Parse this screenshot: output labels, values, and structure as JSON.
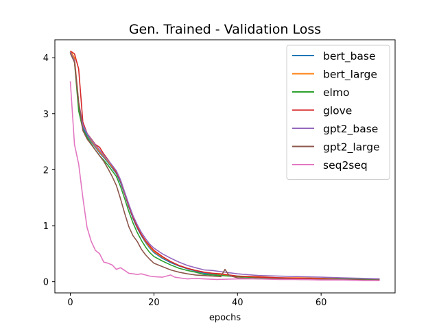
{
  "chart_data": {
    "type": "line",
    "title": "Gen. Trained - Validation Loss",
    "xlabel": "epochs",
    "ylabel": "",
    "xlim": [
      -3.7,
      77.7
    ],
    "ylim": [
      -0.2,
      4.32
    ],
    "xticks": [
      0,
      20,
      40,
      60
    ],
    "yticks": [
      0,
      1,
      2,
      3,
      4
    ],
    "grid": false,
    "legend_position": "top-right",
    "series": [
      {
        "name": "bert_base",
        "color": "#1f77b4",
        "points": [
          [
            0,
            4.1
          ],
          [
            1,
            3.95
          ],
          [
            2,
            3.15
          ],
          [
            3,
            2.75
          ],
          [
            4,
            2.62
          ],
          [
            5,
            2.5
          ],
          [
            6,
            2.4
          ],
          [
            7,
            2.3
          ],
          [
            8,
            2.22
          ],
          [
            9,
            2.13
          ],
          [
            10,
            2.03
          ],
          [
            11,
            1.93
          ],
          [
            12,
            1.77
          ],
          [
            13,
            1.56
          ],
          [
            14,
            1.33
          ],
          [
            15,
            1.13
          ],
          [
            16,
            0.96
          ],
          [
            17,
            0.82
          ],
          [
            18,
            0.7
          ],
          [
            19,
            0.6
          ],
          [
            20,
            0.52
          ],
          [
            22,
            0.42
          ],
          [
            24,
            0.34
          ],
          [
            26,
            0.28
          ],
          [
            28,
            0.23
          ],
          [
            30,
            0.19
          ],
          [
            32,
            0.15
          ],
          [
            34,
            0.14
          ],
          [
            36,
            0.12
          ],
          [
            40,
            0.1
          ],
          [
            45,
            0.08
          ],
          [
            50,
            0.07
          ],
          [
            55,
            0.06
          ],
          [
            60,
            0.06
          ],
          [
            65,
            0.05
          ],
          [
            70,
            0.05
          ],
          [
            74,
            0.04
          ]
        ]
      },
      {
        "name": "bert_large",
        "color": "#ff7f0e",
        "points": [
          [
            0,
            4.12
          ],
          [
            1,
            4.0
          ],
          [
            2,
            3.2
          ],
          [
            3,
            2.8
          ],
          [
            4,
            2.65
          ],
          [
            5,
            2.52
          ],
          [
            6,
            2.42
          ],
          [
            7,
            2.32
          ],
          [
            8,
            2.24
          ],
          [
            9,
            2.15
          ],
          [
            10,
            2.05
          ],
          [
            11,
            1.95
          ],
          [
            12,
            1.8
          ],
          [
            13,
            1.58
          ],
          [
            14,
            1.35
          ],
          [
            15,
            1.16
          ],
          [
            16,
            0.98
          ],
          [
            17,
            0.84
          ],
          [
            18,
            0.72
          ],
          [
            19,
            0.62
          ],
          [
            20,
            0.54
          ],
          [
            22,
            0.44
          ],
          [
            24,
            0.36
          ],
          [
            26,
            0.29
          ],
          [
            28,
            0.24
          ],
          [
            30,
            0.2
          ],
          [
            32,
            0.17
          ],
          [
            34,
            0.15
          ],
          [
            36,
            0.13
          ],
          [
            40,
            0.1
          ],
          [
            45,
            0.09
          ],
          [
            50,
            0.07
          ],
          [
            55,
            0.07
          ],
          [
            60,
            0.06
          ],
          [
            65,
            0.05
          ],
          [
            70,
            0.05
          ],
          [
            74,
            0.05
          ]
        ]
      },
      {
        "name": "elmo",
        "color": "#2ca02c",
        "points": [
          [
            0,
            4.1
          ],
          [
            1,
            3.92
          ],
          [
            2,
            3.05
          ],
          [
            3,
            2.72
          ],
          [
            4,
            2.58
          ],
          [
            5,
            2.46
          ],
          [
            6,
            2.35
          ],
          [
            7,
            2.25
          ],
          [
            8,
            2.17
          ],
          [
            9,
            2.08
          ],
          [
            10,
            1.98
          ],
          [
            11,
            1.88
          ],
          [
            12,
            1.7
          ],
          [
            13,
            1.48
          ],
          [
            14,
            1.25
          ],
          [
            15,
            1.05
          ],
          [
            16,
            0.88
          ],
          [
            17,
            0.74
          ],
          [
            18,
            0.62
          ],
          [
            19,
            0.52
          ],
          [
            20,
            0.45
          ],
          [
            22,
            0.37
          ],
          [
            24,
            0.3
          ],
          [
            26,
            0.24
          ],
          [
            28,
            0.2
          ],
          [
            30,
            0.17
          ],
          [
            32,
            0.13
          ],
          [
            34,
            0.12
          ],
          [
            36,
            0.11
          ],
          [
            40,
            0.09
          ],
          [
            45,
            0.07
          ],
          [
            50,
            0.06
          ],
          [
            55,
            0.06
          ],
          [
            60,
            0.05
          ],
          [
            65,
            0.05
          ],
          [
            70,
            0.04
          ],
          [
            74,
            0.04
          ]
        ]
      },
      {
        "name": "glove",
        "color": "#d62728",
        "points": [
          [
            0,
            4.12
          ],
          [
            1,
            4.07
          ],
          [
            2,
            3.8
          ],
          [
            3,
            2.85
          ],
          [
            4,
            2.65
          ],
          [
            5,
            2.55
          ],
          [
            6,
            2.45
          ],
          [
            7,
            2.4
          ],
          [
            8,
            2.28
          ],
          [
            9,
            2.18
          ],
          [
            10,
            2.07
          ],
          [
            11,
            1.95
          ],
          [
            12,
            1.8
          ],
          [
            13,
            1.58
          ],
          [
            14,
            1.35
          ],
          [
            15,
            1.15
          ],
          [
            16,
            0.98
          ],
          [
            17,
            0.84
          ],
          [
            18,
            0.73
          ],
          [
            19,
            0.64
          ],
          [
            20,
            0.56
          ],
          [
            22,
            0.45
          ],
          [
            24,
            0.36
          ],
          [
            26,
            0.29
          ],
          [
            28,
            0.24
          ],
          [
            30,
            0.2
          ],
          [
            32,
            0.17
          ],
          [
            34,
            0.15
          ],
          [
            36,
            0.14
          ],
          [
            40,
            0.1
          ],
          [
            45,
            0.08
          ],
          [
            50,
            0.07
          ],
          [
            55,
            0.06
          ],
          [
            60,
            0.05
          ],
          [
            65,
            0.04
          ],
          [
            70,
            0.03
          ],
          [
            74,
            0.02
          ]
        ]
      },
      {
        "name": "gpt2_base",
        "color": "#9467bd",
        "points": [
          [
            0,
            4.1
          ],
          [
            1,
            3.95
          ],
          [
            2,
            3.2
          ],
          [
            3,
            2.8
          ],
          [
            4,
            2.65
          ],
          [
            5,
            2.54
          ],
          [
            6,
            2.44
          ],
          [
            7,
            2.35
          ],
          [
            8,
            2.26
          ],
          [
            9,
            2.17
          ],
          [
            10,
            2.08
          ],
          [
            11,
            1.98
          ],
          [
            12,
            1.82
          ],
          [
            13,
            1.6
          ],
          [
            14,
            1.38
          ],
          [
            15,
            1.18
          ],
          [
            16,
            1.02
          ],
          [
            17,
            0.88
          ],
          [
            18,
            0.77
          ],
          [
            19,
            0.67
          ],
          [
            20,
            0.6
          ],
          [
            22,
            0.5
          ],
          [
            24,
            0.42
          ],
          [
            26,
            0.35
          ],
          [
            28,
            0.29
          ],
          [
            30,
            0.25
          ],
          [
            32,
            0.21
          ],
          [
            34,
            0.2
          ],
          [
            36,
            0.18
          ],
          [
            38,
            0.16
          ],
          [
            40,
            0.14
          ],
          [
            45,
            0.11
          ],
          [
            50,
            0.1
          ],
          [
            55,
            0.09
          ],
          [
            60,
            0.08
          ],
          [
            65,
            0.07
          ],
          [
            70,
            0.06
          ],
          [
            74,
            0.05
          ]
        ]
      },
      {
        "name": "gpt2_large",
        "color": "#8c564b",
        "points": [
          [
            0,
            4.08
          ],
          [
            1,
            3.92
          ],
          [
            2,
            3.2
          ],
          [
            3,
            2.7
          ],
          [
            4,
            2.55
          ],
          [
            5,
            2.45
          ],
          [
            6,
            2.35
          ],
          [
            7,
            2.25
          ],
          [
            8,
            2.15
          ],
          [
            9,
            2.02
          ],
          [
            10,
            1.88
          ],
          [
            11,
            1.72
          ],
          [
            12,
            1.48
          ],
          [
            13,
            1.22
          ],
          [
            14,
            0.98
          ],
          [
            15,
            0.82
          ],
          [
            16,
            0.72
          ],
          [
            17,
            0.58
          ],
          [
            18,
            0.48
          ],
          [
            19,
            0.4
          ],
          [
            20,
            0.33
          ],
          [
            22,
            0.27
          ],
          [
            24,
            0.21
          ],
          [
            26,
            0.17
          ],
          [
            28,
            0.14
          ],
          [
            30,
            0.12
          ],
          [
            32,
            0.11
          ],
          [
            34,
            0.1
          ],
          [
            36,
            0.09
          ],
          [
            37,
            0.22
          ],
          [
            38,
            0.11
          ],
          [
            40,
            0.07
          ],
          [
            45,
            0.05
          ],
          [
            50,
            0.05
          ],
          [
            55,
            0.04
          ],
          [
            60,
            0.04
          ],
          [
            65,
            0.04
          ],
          [
            70,
            0.03
          ],
          [
            74,
            0.03
          ]
        ]
      },
      {
        "name": "seq2seq",
        "color": "#e377c2",
        "points": [
          [
            0,
            3.58
          ],
          [
            1,
            2.45
          ],
          [
            2,
            2.1
          ],
          [
            3,
            1.5
          ],
          [
            4,
            0.97
          ],
          [
            5,
            0.72
          ],
          [
            6,
            0.56
          ],
          [
            7,
            0.5
          ],
          [
            8,
            0.35
          ],
          [
            9,
            0.33
          ],
          [
            10,
            0.3
          ],
          [
            11,
            0.22
          ],
          [
            12,
            0.25
          ],
          [
            13,
            0.2
          ],
          [
            14,
            0.15
          ],
          [
            15,
            0.14
          ],
          [
            16,
            0.13
          ],
          [
            17,
            0.14
          ],
          [
            18,
            0.12
          ],
          [
            19,
            0.1
          ],
          [
            20,
            0.09
          ],
          [
            22,
            0.08
          ],
          [
            24,
            0.12
          ],
          [
            25,
            0.08
          ],
          [
            26,
            0.07
          ],
          [
            28,
            0.05
          ],
          [
            30,
            0.06
          ],
          [
            32,
            0.05
          ],
          [
            35,
            0.04
          ],
          [
            40,
            0.05
          ],
          [
            45,
            0.05
          ],
          [
            50,
            0.04
          ],
          [
            55,
            0.04
          ],
          [
            60,
            0.03
          ],
          [
            65,
            0.03
          ],
          [
            70,
            0.02
          ],
          [
            74,
            0.02
          ]
        ]
      }
    ]
  }
}
